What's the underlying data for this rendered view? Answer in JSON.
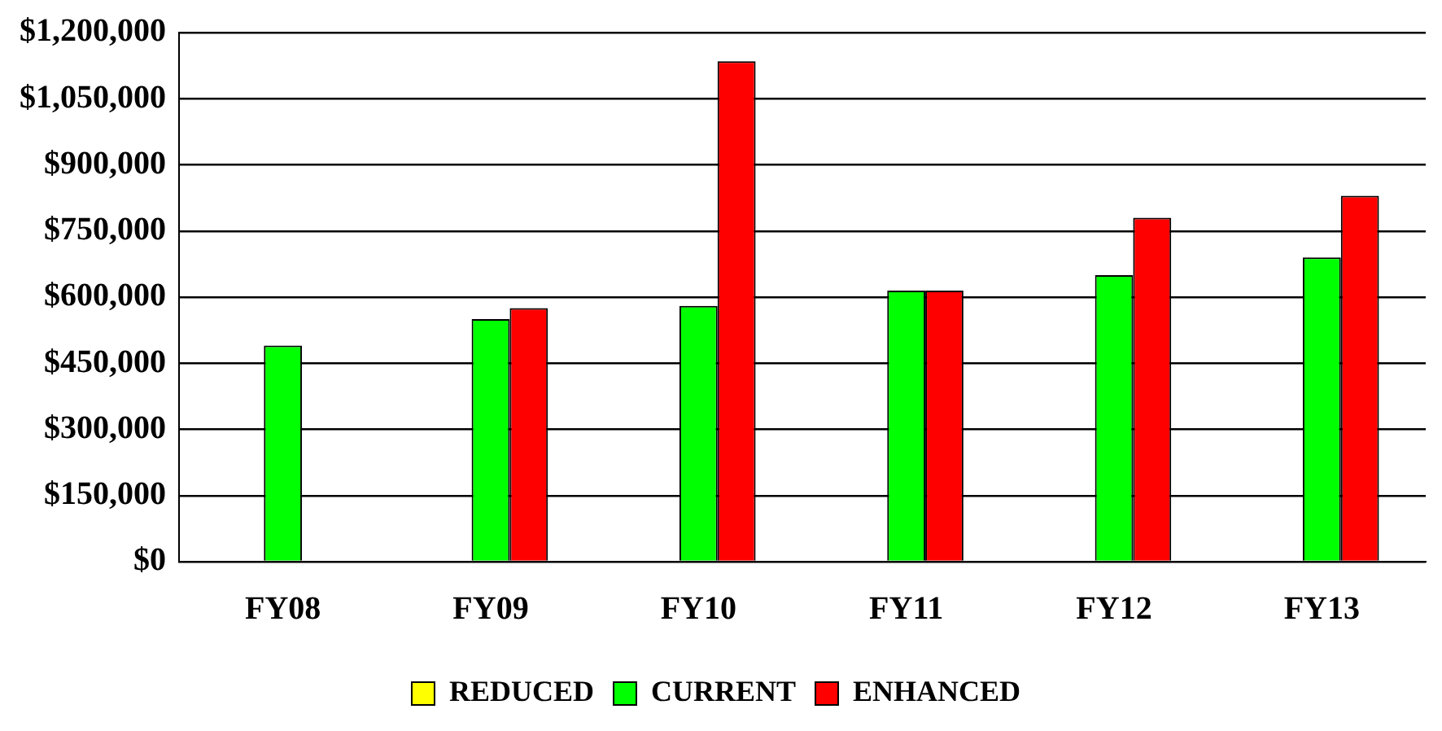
{
  "chart_data": {
    "type": "bar",
    "categories": [
      "FY08",
      "FY09",
      "FY10",
      "FY11",
      "FY12",
      "FY13"
    ],
    "series": [
      {
        "name": "REDUCED",
        "color": "#ffff00",
        "values": [
          null,
          null,
          null,
          null,
          null,
          null
        ]
      },
      {
        "name": "CURRENT",
        "color": "#00ff00",
        "values": [
          490000,
          550000,
          580000,
          615000,
          650000,
          690000
        ]
      },
      {
        "name": "ENHANCED",
        "color": "#ff0000",
        "values": [
          null,
          575000,
          1135000,
          615000,
          780000,
          830000
        ]
      }
    ],
    "ylim": [
      0,
      1200000
    ],
    "yticks": [
      {
        "value": 0,
        "label": "$0"
      },
      {
        "value": 150000,
        "label": "$150,000"
      },
      {
        "value": 300000,
        "label": "$300,000"
      },
      {
        "value": 450000,
        "label": "$450,000"
      },
      {
        "value": 600000,
        "label": "$600,000"
      },
      {
        "value": 750000,
        "label": "$750,000"
      },
      {
        "value": 900000,
        "label": "$900,000"
      },
      {
        "value": 1050000,
        "label": "$1,050,000"
      },
      {
        "value": 1200000,
        "label": "$1,200,000"
      }
    ],
    "grid": "y",
    "legend": "bottom"
  }
}
